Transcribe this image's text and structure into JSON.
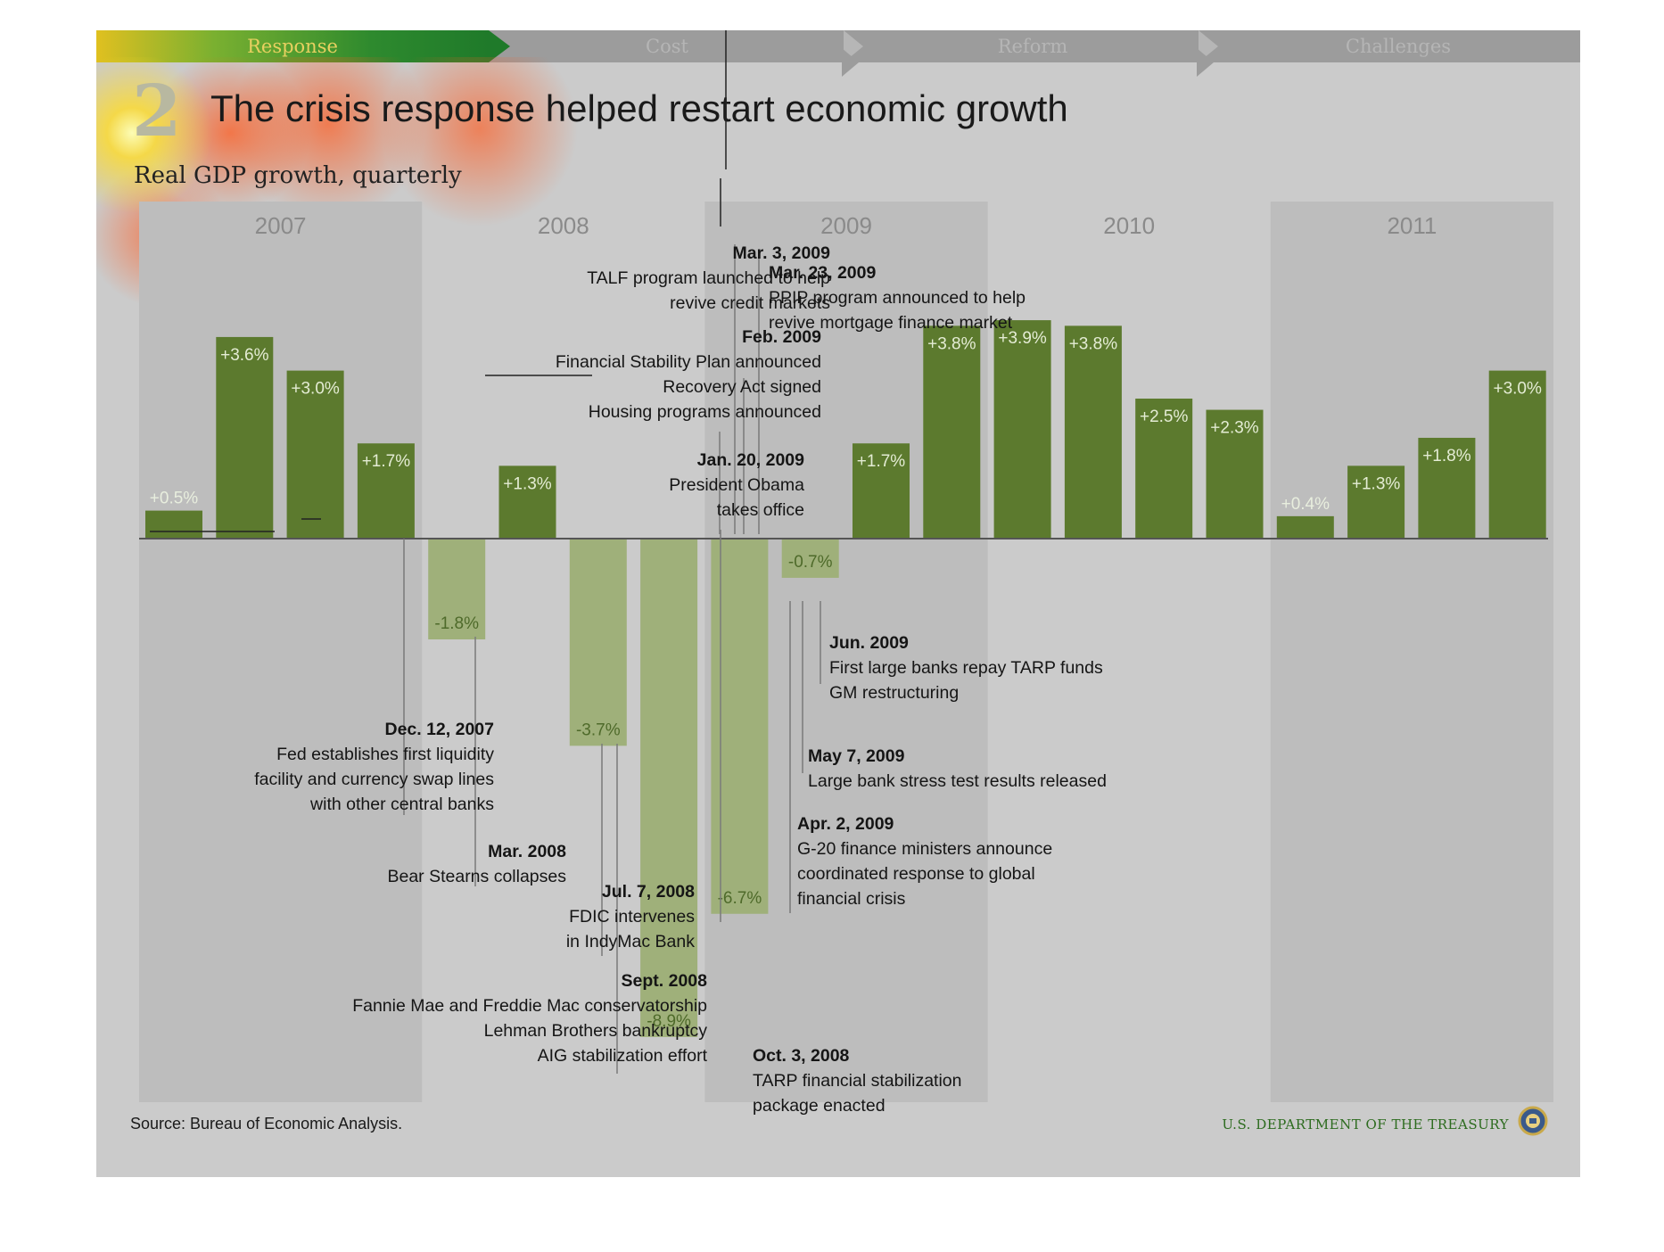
{
  "nav": {
    "tabs": [
      {
        "label": "Response",
        "active": true
      },
      {
        "label": "Cost",
        "active": false
      },
      {
        "label": "Reform",
        "active": false
      },
      {
        "label": "Challenges",
        "active": false
      }
    ]
  },
  "slide_number": "2",
  "title": "The crisis response helped restart economic growth",
  "subtitle": "Real GDP growth, quarterly",
  "source": "Source: Bureau of Economic Analysis.",
  "footer_org": "U.S. DEPARTMENT OF THE TREASURY",
  "colors": {
    "positive": "#5c7a2e",
    "negative": "#9fb07a",
    "year_band": "#bdbdbd",
    "nav_active": "#1f7a2a"
  },
  "chart_data": {
    "type": "bar",
    "years": [
      "2007",
      "2008",
      "2009",
      "2010",
      "2011"
    ],
    "values": [
      0.5,
      3.6,
      3.0,
      1.7,
      -1.8,
      1.3,
      -3.7,
      -8.9,
      -6.7,
      -0.7,
      1.7,
      3.8,
      3.9,
      3.8,
      2.5,
      2.3,
      0.4,
      1.3,
      1.8,
      3.0
    ],
    "labels": [
      "+0.5%",
      "+3.6%",
      "+3.0%",
      "+1.7%",
      "-1.8%",
      "+1.3%",
      "-3.7%",
      "-8.9%",
      "-6.7%",
      "-0.7%",
      "+1.7%",
      "+3.8%",
      "+3.9%",
      "+3.8%",
      "+2.5%",
      "+2.3%",
      "+0.4%",
      "+1.3%",
      "+1.8%",
      "+3.0%"
    ],
    "ylabel": "",
    "grid": false
  },
  "annotations": [
    {
      "id": "dec-2007",
      "date": "Dec. 12, 2007",
      "lines": [
        "Fed establishes first liquidity",
        "facility and currency swap lines",
        "with other central banks"
      ]
    },
    {
      "id": "mar-2008",
      "date": "Mar. 2008",
      "lines": [
        "Bear Stearns collapses"
      ]
    },
    {
      "id": "jul-2008",
      "date": "Jul. 7, 2008",
      "lines": [
        "FDIC intervenes",
        "in IndyMac Bank"
      ]
    },
    {
      "id": "sep-2008",
      "date": "Sept. 2008",
      "lines": [
        "Fannie Mae and Freddie Mac conservatorship",
        "Lehman Brothers bankruptcy",
        "AIG stabilization effort"
      ]
    },
    {
      "id": "oct-2008",
      "date": "Oct. 3, 2008",
      "lines": [
        "TARP financial stabilization",
        "package enacted"
      ]
    },
    {
      "id": "jan-2009",
      "date": "Jan. 20, 2009",
      "lines": [
        "President Obama",
        "takes office"
      ]
    },
    {
      "id": "feb-2009",
      "date": "Feb. 2009",
      "lines": [
        "Financial Stability Plan announced",
        "Recovery Act signed",
        "Housing programs announced"
      ]
    },
    {
      "id": "mar3-2009",
      "date": "Mar. 3, 2009",
      "lines": [
        "TALF program launched to help",
        "revive credit markets"
      ]
    },
    {
      "id": "mar23-2009",
      "date": "Mar. 23, 2009",
      "lines": [
        "PPIP program announced to help",
        "revive mortgage finance market"
      ]
    },
    {
      "id": "apr-2009",
      "date": "Apr. 2, 2009",
      "lines": [
        "G-20 finance ministers announce",
        "coordinated response to global",
        "financial crisis"
      ]
    },
    {
      "id": "may-2009",
      "date": "May 7, 2009",
      "lines": [
        "Large bank stress test results released"
      ]
    },
    {
      "id": "jun-2009",
      "date": "Jun. 2009",
      "lines": [
        "First large banks repay TARP funds",
        "GM restructuring"
      ]
    }
  ]
}
